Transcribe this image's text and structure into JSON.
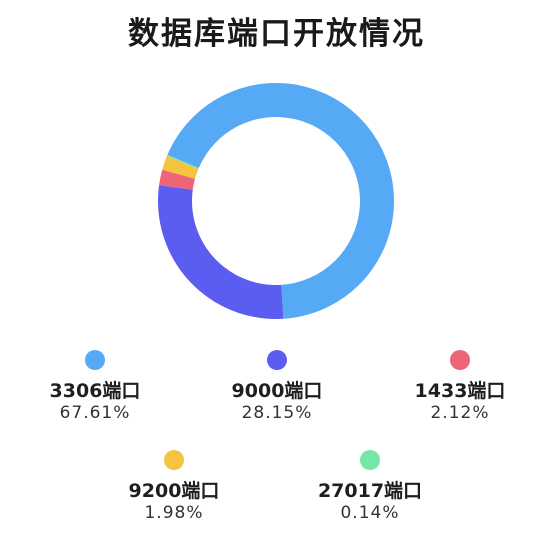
{
  "chart_data": {
    "type": "pie",
    "title": "数据库端口开放情况",
    "style": "donut",
    "legend_position": "bottom",
    "slices": [
      {
        "label": "3306端口",
        "percent_text": "67.61%",
        "value": 67.61,
        "color": "#56a9f5"
      },
      {
        "label": "9000端口",
        "percent_text": "28.15%",
        "value": 28.15,
        "color": "#5b5cf0"
      },
      {
        "label": "1433端口",
        "percent_text": "2.12%",
        "value": 2.12,
        "color": "#ee6578"
      },
      {
        "label": "9200端口",
        "percent_text": "1.98%",
        "value": 1.98,
        "color": "#f6c341"
      },
      {
        "label": "27017端口",
        "percent_text": "0.14%",
        "value": 0.14,
        "color": "#76e6a6"
      }
    ]
  }
}
